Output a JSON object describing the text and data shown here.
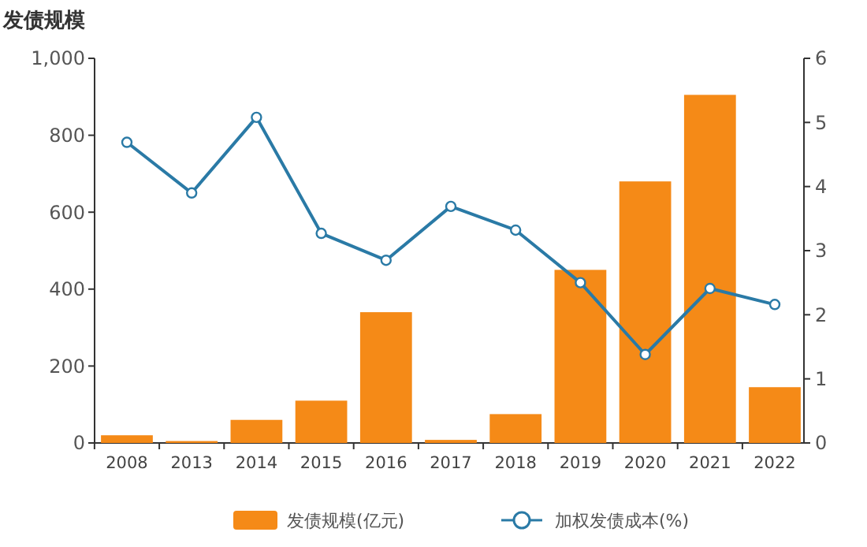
{
  "chart_data": {
    "type": "bar",
    "ylabel": "发债规模",
    "categories": [
      "2008",
      "2013",
      "2014",
      "2015",
      "2016",
      "2017",
      "2018",
      "2019",
      "2020",
      "2021",
      "2022"
    ],
    "series": [
      {
        "name": "发债规模(亿元)",
        "color": "#f58a17",
        "values": [
          20,
          5,
          60,
          110,
          340,
          8,
          75,
          450,
          680,
          905,
          145
        ]
      },
      {
        "name": "加权发债成本(%)",
        "type": "line",
        "axis": "y2",
        "color": "#2a7aa6",
        "marker": "circle",
        "values": [
          4.69,
          3.9,
          5.08,
          3.27,
          2.85,
          3.69,
          3.32,
          2.5,
          1.38,
          2.41,
          2.16
        ]
      }
    ],
    "ylim": [
      0,
      1000
    ],
    "yticks": [
      0,
      {
        "value": 200,
        "label": "200"
      },
      {
        "value": 400,
        "label": "400"
      },
      {
        "value": 600,
        "label": "600"
      },
      {
        "value": 800,
        "label": "800"
      },
      {
        "value": 1000,
        "label": "1,000"
      }
    ],
    "y2lim": [
      0,
      6
    ],
    "y2ticks": [
      0,
      1,
      2,
      3,
      4,
      5,
      6
    ],
    "legend": "bottom",
    "grid": false
  }
}
